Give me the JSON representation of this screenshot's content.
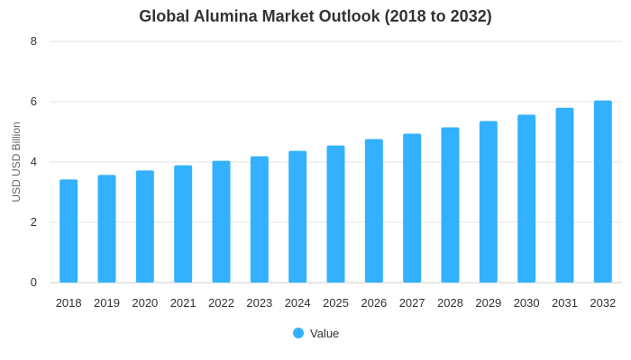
{
  "chart_data": {
    "type": "bar",
    "title": "Global Alumina Market Outlook (2018 to 2032)",
    "xlabel": "",
    "ylabel": "USD USD Billion",
    "ylim": [
      0,
      8
    ],
    "yticks": [
      0,
      2,
      4,
      6,
      8
    ],
    "categories": [
      "2018",
      "2019",
      "2020",
      "2021",
      "2022",
      "2023",
      "2024",
      "2025",
      "2026",
      "2027",
      "2028",
      "2029",
      "2030",
      "2031",
      "2032"
    ],
    "series": [
      {
        "name": "Value",
        "color": "#33B1FF",
        "values": [
          3.42,
          3.57,
          3.72,
          3.89,
          4.04,
          4.19,
          4.37,
          4.55,
          4.76,
          4.94,
          5.15,
          5.36,
          5.57,
          5.8,
          6.04
        ]
      }
    ],
    "grid": true,
    "legend": "bottom-center"
  }
}
